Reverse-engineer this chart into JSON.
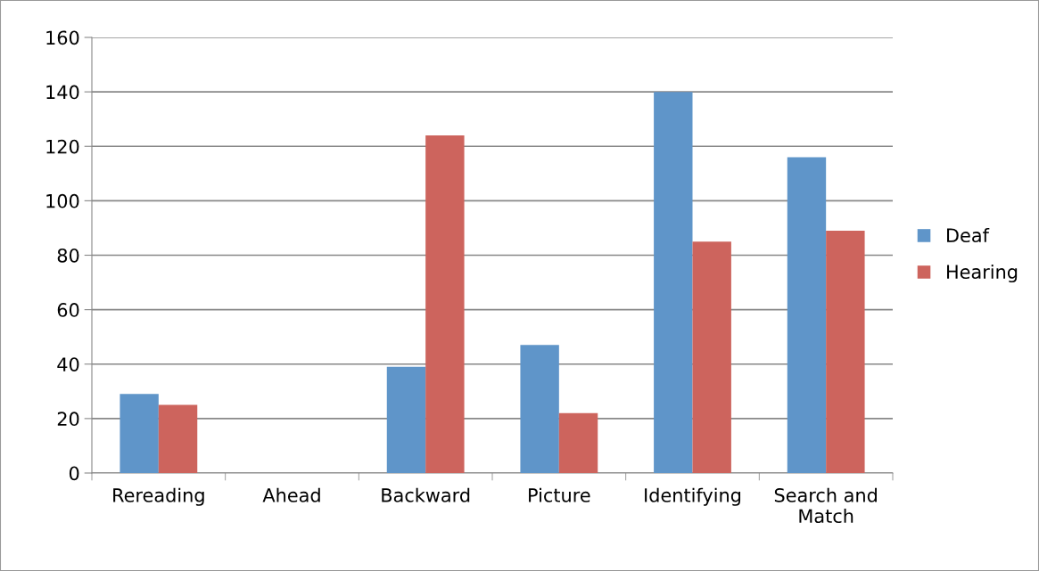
{
  "chart_data": {
    "type": "bar",
    "categories": [
      "Rereading",
      "Ahead",
      "Backward",
      "Picture",
      "Identifying",
      "Search and\nMatch"
    ],
    "series": [
      {
        "name": "Deaf",
        "color": "#5f95c9",
        "values": [
          29,
          0,
          39,
          47,
          140,
          116
        ]
      },
      {
        "name": "Hearing",
        "color": "#cd645d",
        "values": [
          25,
          0,
          124,
          22,
          85,
          89
        ]
      }
    ],
    "ylim": [
      0,
      160
    ],
    "yticks": [
      0,
      20,
      40,
      60,
      80,
      100,
      120,
      140,
      160
    ],
    "grid": "y",
    "legend": "right"
  }
}
